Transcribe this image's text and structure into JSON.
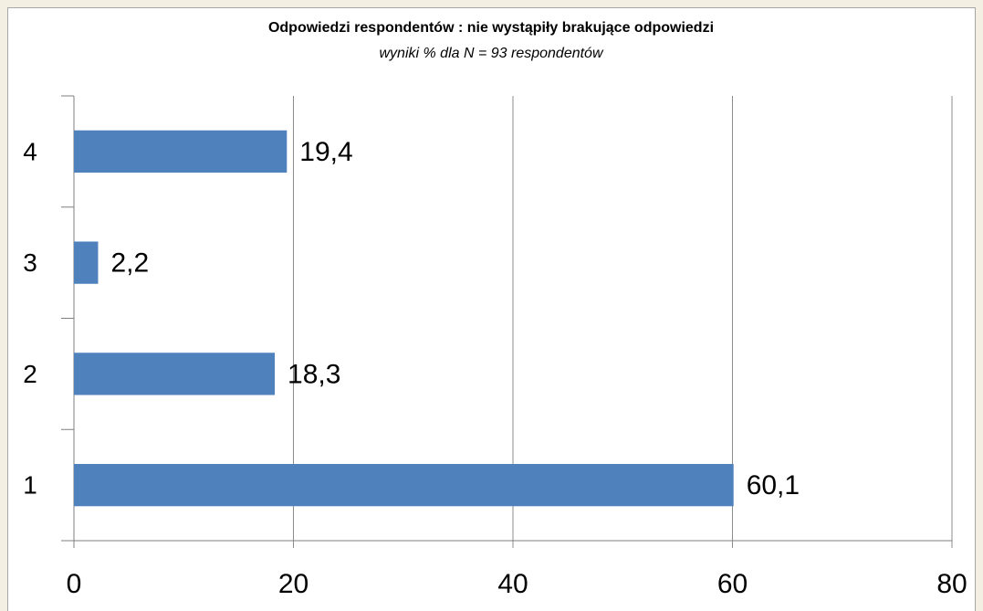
{
  "chart_data": {
    "type": "bar",
    "orientation": "horizontal",
    "title": "Odpowiedzi  respondentów : nie wystąpiły brakujące odpowiedzi",
    "subtitle": "wyniki % dla N = 93 respondentów",
    "categories": [
      "1",
      "2",
      "3",
      "4"
    ],
    "values": [
      60.1,
      18.3,
      2.2,
      19.4
    ],
    "value_labels": [
      "60,1",
      "18,3",
      "2,2",
      "19,4"
    ],
    "color": "#4f81bd",
    "xlim": [
      0,
      80
    ],
    "xticks": [
      0,
      20,
      40,
      60,
      80
    ],
    "grid": true
  }
}
